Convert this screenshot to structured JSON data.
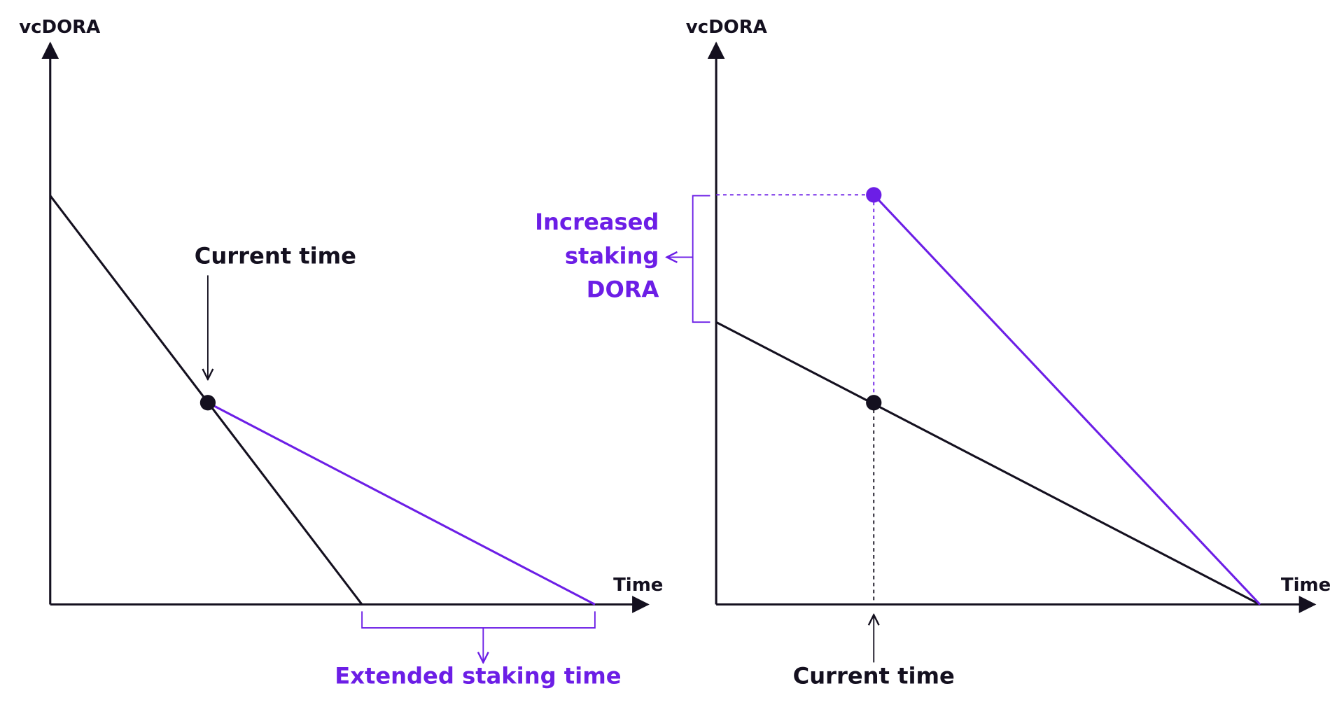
{
  "panels": [
    {
      "y_axis_label": "vcDORA",
      "x_axis_label": "Time",
      "current_time": "Current time",
      "note": "Extended staking time"
    },
    {
      "y_axis_label": "vcDORA",
      "x_axis_label": "Time",
      "current_time": "Current time",
      "note_lines": [
        "Increased",
        "staking",
        "DORA"
      ]
    }
  ]
}
